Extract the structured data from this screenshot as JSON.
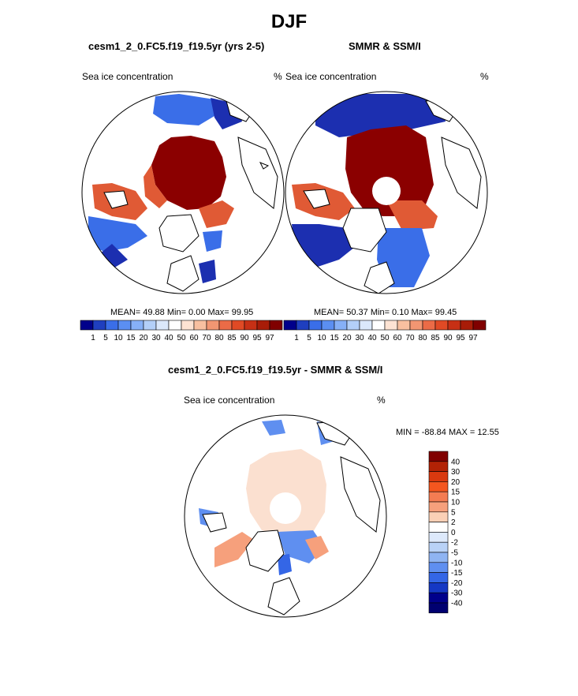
{
  "title": "DJF",
  "panels": {
    "model": {
      "title": "cesm1_2_0.FC5.f19_f19.5yr (yrs 2-5)",
      "left_label": "Sea ice concentration",
      "right_label": "%",
      "stats": "MEAN=  49.88  Min=   0.00  Max=  99.95"
    },
    "obs": {
      "title": "SMMR & SSM/I",
      "left_label": "Sea ice concentration",
      "right_label": "%",
      "stats": "MEAN=  50.37  Min=   0.10  Max=  99.45"
    },
    "diff": {
      "title": "cesm1_2_0.FC5.f19_f19.5yr - SMMR & SSM/I",
      "left_label": "Sea ice concentration",
      "right_label": "%",
      "stats": "MIN = -88.84 MAX =  12.55"
    }
  },
  "colorbar_conc": {
    "labels": [
      "1",
      "5",
      "10",
      "15",
      "20",
      "30",
      "40",
      "50",
      "60",
      "70",
      "80",
      "85",
      "90",
      "95",
      "97"
    ],
    "colors": [
      "#00008b",
      "#1f3fbf",
      "#3a6ee8",
      "#5b8ff2",
      "#86b0f7",
      "#b3cff8",
      "#dbe8fb",
      "#ffffff",
      "#fde3d3",
      "#f8c0a0",
      "#f29672",
      "#eb6b47",
      "#e04a25",
      "#c73015",
      "#a81c08",
      "#800000"
    ]
  },
  "colorbar_diff": {
    "labels": [
      "40",
      "30",
      "20",
      "15",
      "10",
      "5",
      "2",
      "0",
      "-2",
      "-5",
      "-10",
      "-15",
      "-20",
      "-30",
      "-40"
    ],
    "colors": [
      "#800000",
      "#b22205",
      "#d9390f",
      "#f4561f",
      "#f47c52",
      "#f6a07c",
      "#fbd0b6",
      "#ffffff",
      "#dde9fb",
      "#b9d2f7",
      "#8fb4f2",
      "#5f8ff0",
      "#3466e6",
      "#1538c4",
      "#00008b",
      "#000070"
    ]
  },
  "map_colors": {
    "land": "#ffffff",
    "coast": "#000000",
    "high_ice": "#8b0000",
    "mid_ice": "#e05a35",
    "low_ice": "#3a6ee8",
    "edge_ice": "#1c2fb0",
    "pos_diff": "#fbe0d0",
    "neg_diff": "#5f8ff0"
  }
}
